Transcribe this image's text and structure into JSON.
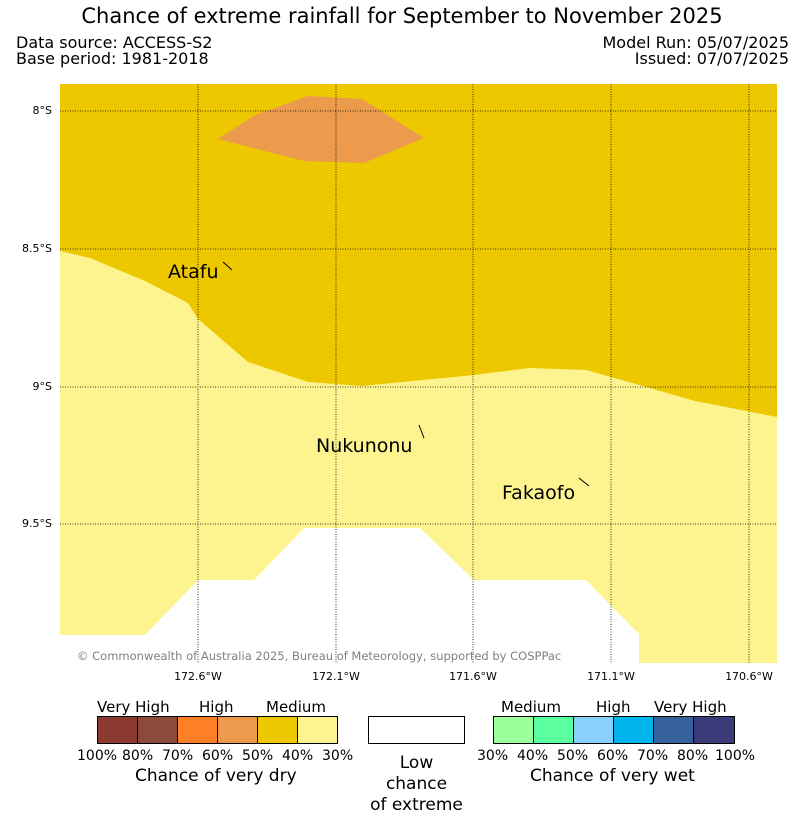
{
  "title": "Chance of extreme rainfall for September to November 2025",
  "data_source": "Data source: ACCESS-S2",
  "base_period": "Base period: 1981-2018",
  "model_run": "Model Run: 05/07/2025",
  "issued": "Issued: 07/07/2025",
  "copyright": "© Commonwealth of Australia 2025, Bureau of Meteorology, supported by COSPPac",
  "lat_labels": [
    "8°S",
    "8.5°S",
    "9°S",
    "9.5°S"
  ],
  "lon_labels": [
    "172.6°W",
    "172.1°W",
    "171.6°W",
    "171.1°W",
    "170.6°W"
  ],
  "places": [
    "Atafu",
    "Nukunonu",
    "Fakaofo"
  ],
  "colors": {
    "very_high_dry": "#8b3a2f",
    "very_high_dry_2": "#8b4a3a",
    "high_dry": "#ff8027",
    "high_dry_2": "#eb9b4b",
    "medium_dry": "#edc800",
    "medium_dry_2": "#fdf48f",
    "medium_wet": "#9bff9b",
    "medium_wet_2": "#5cff9f",
    "high_wet": "#8ad0ff",
    "high_wet_2": "#00b4ee",
    "very_high_wet": "#36619a",
    "very_high_wet_2": "#3b3a78"
  },
  "legend": {
    "dry": {
      "categories": [
        "Very High",
        "High",
        "Medium"
      ],
      "ticks": [
        "100%",
        "80%",
        "70%",
        "60%",
        "50%",
        "40%",
        "30%"
      ],
      "caption": "Chance of very dry"
    },
    "low": {
      "line1": "Low chance",
      "line2": "of extreme"
    },
    "wet": {
      "categories": [
        "Medium",
        "High",
        "Very High"
      ],
      "ticks": [
        "30%",
        "40%",
        "50%",
        "60%",
        "70%",
        "80%",
        "100%"
      ],
      "caption": "Chance of very wet"
    }
  }
}
